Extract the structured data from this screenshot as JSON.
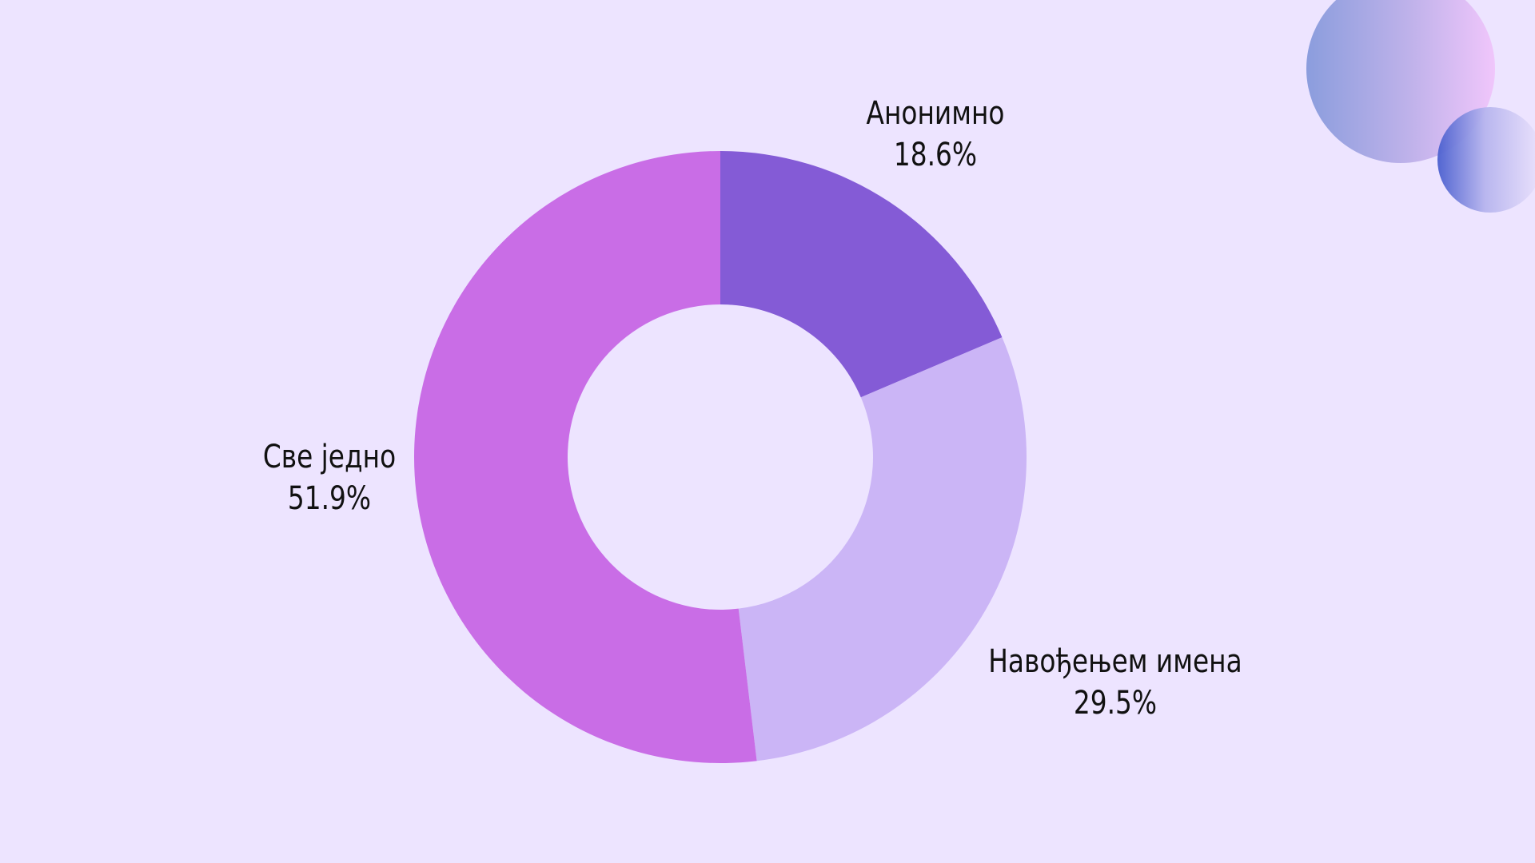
{
  "chart_data": {
    "type": "pie",
    "donut": true,
    "slices": [
      {
        "label": "Анонимно",
        "value": 18.6,
        "display": "18.6%",
        "color": "#845bd6"
      },
      {
        "label": "Навођењем имена",
        "value": 29.5,
        "display": "29.5%",
        "color": "#cbb5f6"
      },
      {
        "label": "Све једно",
        "value": 51.9,
        "display": "51.9%",
        "color": "#c96de6"
      }
    ]
  },
  "background_color": "#ede4ff"
}
